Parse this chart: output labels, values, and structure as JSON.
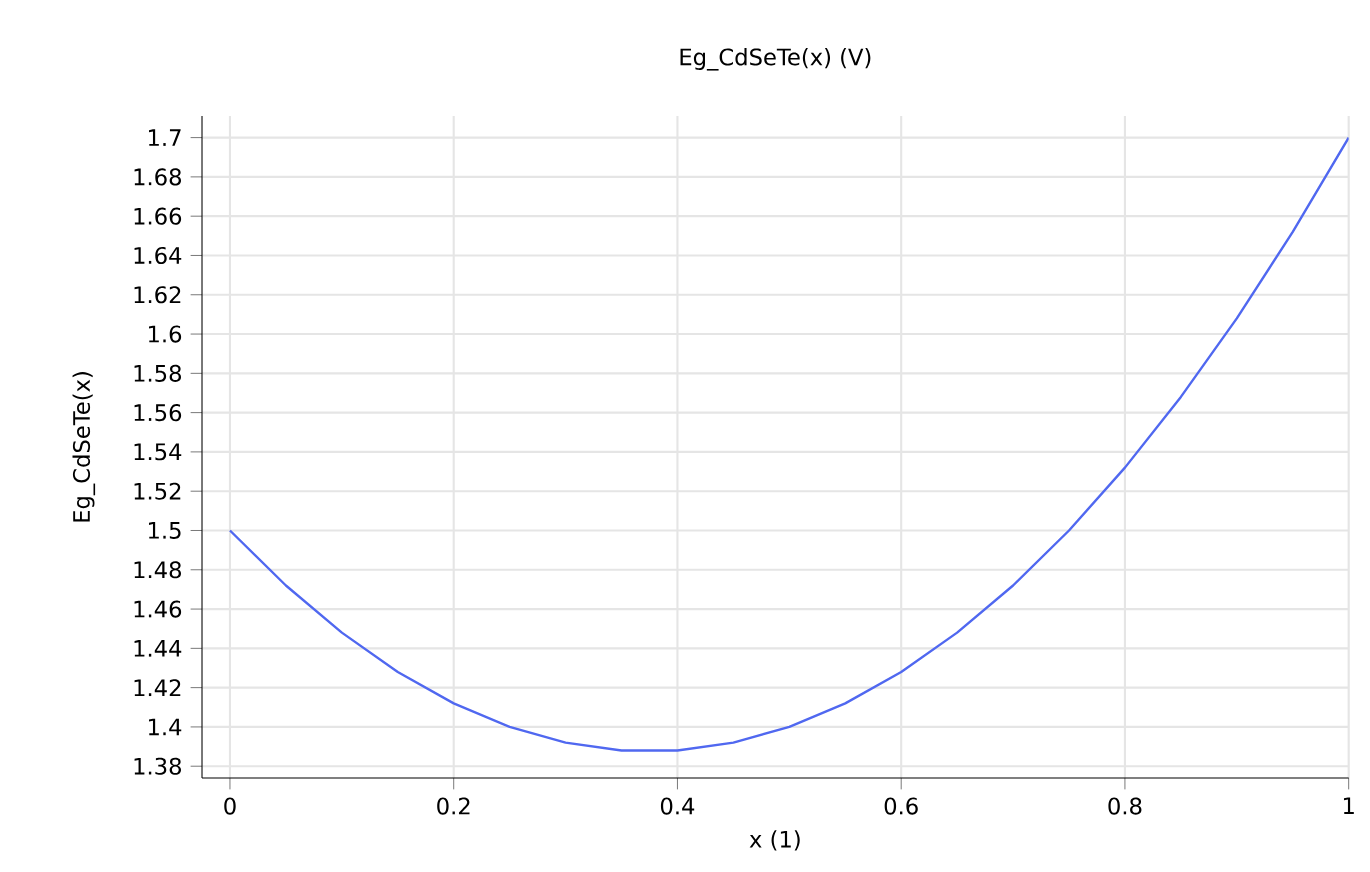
{
  "chart_data": {
    "type": "line",
    "title": "Eg_CdSeTe(x) (V)",
    "xlabel": "x (1)",
    "ylabel": "Eg_CdSeTe(x)",
    "x": [
      0,
      0.05,
      0.1,
      0.15,
      0.2,
      0.25,
      0.3,
      0.35,
      0.4,
      0.45,
      0.5,
      0.55,
      0.6,
      0.65,
      0.7,
      0.75,
      0.8,
      0.85,
      0.9,
      0.95,
      1
    ],
    "series": [
      {
        "color": "#5068f0",
        "values": [
          1.5,
          1.472,
          1.448,
          1.428,
          1.412,
          1.4,
          1.392,
          1.388,
          1.388,
          1.392,
          1.4,
          1.412,
          1.428,
          1.448,
          1.472,
          1.5,
          1.532,
          1.568,
          1.608,
          1.652,
          1.7
        ]
      }
    ],
    "xlim": [
      -0.025,
      1.0
    ],
    "ylim": [
      1.374,
      1.711
    ],
    "xticks": [
      0,
      0.2,
      0.4,
      0.6,
      0.8,
      1
    ],
    "yticks": [
      1.38,
      1.4,
      1.42,
      1.44,
      1.46,
      1.48,
      1.5,
      1.52,
      1.54,
      1.56,
      1.58,
      1.6,
      1.62,
      1.64,
      1.66,
      1.68,
      1.7
    ],
    "grid": true,
    "marker": "none",
    "line_style": "solid"
  }
}
